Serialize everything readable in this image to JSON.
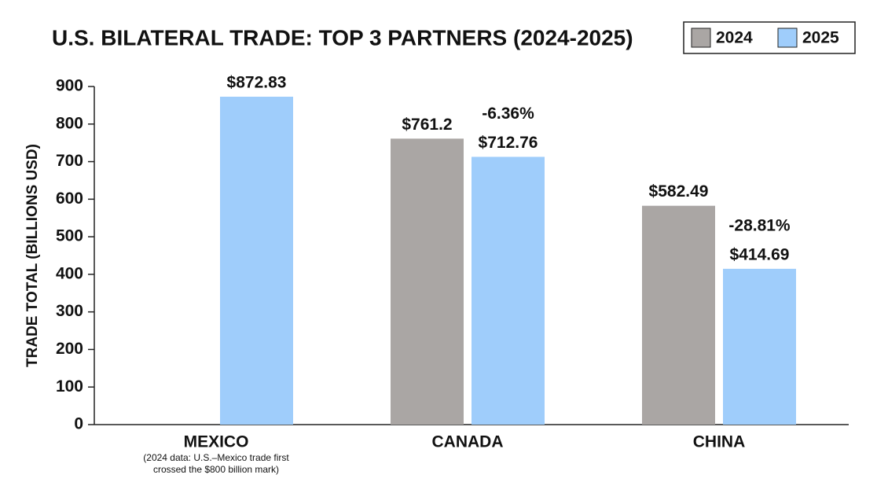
{
  "chart_data": {
    "type": "bar",
    "title": "U.S. BILATERAL TRADE: TOP 3 PARTNERS (2024-2025)",
    "y_label": "TRADE TOTAL (BILLIONS USD)",
    "categories": [
      "MEXICO",
      "CANADA",
      "CHINA"
    ],
    "category_notes": [
      [
        "(2024 data: U.S.–Mexico trade first",
        "crossed the $800 billion mark)"
      ],
      null,
      null
    ],
    "series": [
      {
        "name": "2024",
        "color": "#aaa6a4",
        "values": [
          null,
          761.2,
          582.49
        ],
        "value_labels": [
          null,
          "$761.2",
          "$582.49"
        ]
      },
      {
        "name": "2025",
        "color": "#9fcdfb",
        "values": [
          872.83,
          712.76,
          414.69
        ],
        "value_labels": [
          "$872.83",
          "$712.76",
          "$414.69"
        ],
        "change_labels": [
          null,
          "-6.36%",
          "-28.81%"
        ]
      }
    ],
    "ylim": [
      0,
      900
    ],
    "yticks": [
      0,
      100,
      200,
      300,
      400,
      500,
      600,
      700,
      800,
      900
    ],
    "legend": "top-right"
  }
}
